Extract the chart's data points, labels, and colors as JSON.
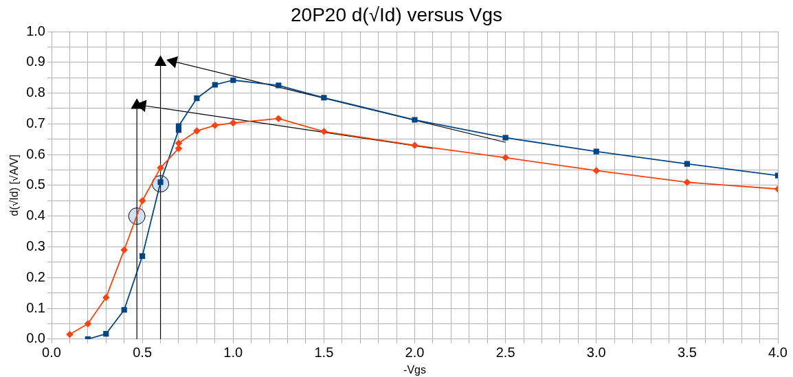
{
  "chart_data": {
    "type": "line",
    "title": "20P20 d(√Id) versus Vgs",
    "xlabel": "-Vgs",
    "ylabel": "d(√Id) [√A/V]",
    "grid": true,
    "legend": false,
    "xlim": [
      0,
      4
    ],
    "ylim": [
      0,
      1
    ],
    "xticks": [
      {
        "value": 0,
        "label": "0.0"
      },
      {
        "value": 0.1,
        "label": null
      },
      {
        "value": 0.2,
        "label": null
      },
      {
        "value": 0.3,
        "label": null
      },
      {
        "value": 0.4,
        "label": null
      },
      {
        "value": 0.5,
        "label": "0.5"
      },
      {
        "value": 0.6,
        "label": null
      },
      {
        "value": 0.7,
        "label": null
      },
      {
        "value": 0.8,
        "label": null
      },
      {
        "value": 0.9,
        "label": null
      },
      {
        "value": 1,
        "label": "1.0"
      },
      {
        "value": 1.1,
        "label": null
      },
      {
        "value": 1.2,
        "label": null
      },
      {
        "value": 1.3,
        "label": null
      },
      {
        "value": 1.4,
        "label": null
      },
      {
        "value": 1.5,
        "label": "1.5"
      },
      {
        "value": 1.6,
        "label": null
      },
      {
        "value": 1.7,
        "label": null
      },
      {
        "value": 1.8,
        "label": null
      },
      {
        "value": 1.9,
        "label": null
      },
      {
        "value": 2,
        "label": "2.0"
      },
      {
        "value": 2.1,
        "label": null
      },
      {
        "value": 2.2,
        "label": null
      },
      {
        "value": 2.3,
        "label": null
      },
      {
        "value": 2.4,
        "label": null
      },
      {
        "value": 2.5,
        "label": "2.5"
      },
      {
        "value": 2.6,
        "label": null
      },
      {
        "value": 2.7,
        "label": null
      },
      {
        "value": 2.8,
        "label": null
      },
      {
        "value": 2.9,
        "label": null
      },
      {
        "value": 3,
        "label": "3.0"
      },
      {
        "value": 3.1,
        "label": null
      },
      {
        "value": 3.2,
        "label": null
      },
      {
        "value": 3.3,
        "label": null
      },
      {
        "value": 3.4,
        "label": null
      },
      {
        "value": 3.5,
        "label": "3.5"
      },
      {
        "value": 3.6,
        "label": null
      },
      {
        "value": 3.7,
        "label": null
      },
      {
        "value": 3.8,
        "label": null
      },
      {
        "value": 3.9,
        "label": null
      },
      {
        "value": 4,
        "label": "4.0"
      }
    ],
    "yticks": [
      {
        "value": 0,
        "label": "0.0"
      },
      {
        "value": 0.05,
        "label": null
      },
      {
        "value": 0.1,
        "label": "0.1"
      },
      {
        "value": 0.15,
        "label": null
      },
      {
        "value": 0.2,
        "label": "0.2"
      },
      {
        "value": 0.25,
        "label": null
      },
      {
        "value": 0.3,
        "label": "0.3"
      },
      {
        "value": 0.35,
        "label": null
      },
      {
        "value": 0.4,
        "label": "0.4"
      },
      {
        "value": 0.45,
        "label": null
      },
      {
        "value": 0.5,
        "label": "0.5"
      },
      {
        "value": 0.55,
        "label": null
      },
      {
        "value": 0.6,
        "label": "0.6"
      },
      {
        "value": 0.65,
        "label": null
      },
      {
        "value": 0.7,
        "label": "0.7"
      },
      {
        "value": 0.75,
        "label": null
      },
      {
        "value": 0.8,
        "label": "0.8"
      },
      {
        "value": 0.85,
        "label": null
      },
      {
        "value": 0.9,
        "label": "0.9"
      },
      {
        "value": 0.95,
        "label": null
      },
      {
        "value": 1,
        "label": "1.0"
      }
    ],
    "series": [
      {
        "type": "line",
        "color": "#ff420e",
        "marker": "diamond",
        "x": [
          0.1,
          0.2,
          0.3,
          0.4,
          0.5,
          0.6,
          0.7,
          0.7,
          0.8,
          0.9,
          1.0,
          1.25,
          1.5,
          2.0,
          2.5,
          3.0,
          3.5,
          4.0
        ],
        "values": [
          0.015,
          0.05,
          0.135,
          0.29,
          0.45,
          0.557,
          0.62,
          0.637,
          0.677,
          0.695,
          0.703,
          0.717,
          0.675,
          0.63,
          0.59,
          0.548,
          0.51,
          0.488
        ]
      },
      {
        "type": "line",
        "color": "#004586",
        "marker": "square",
        "x": [
          0.2,
          0.3,
          0.4,
          0.5,
          0.6,
          0.7,
          0.7,
          0.8,
          0.9,
          1.0,
          1.25,
          1.5,
          2.0,
          2.5,
          3.0,
          3.5,
          4.0
        ],
        "values": [
          0.0,
          0.017,
          0.095,
          0.27,
          0.51,
          0.68,
          0.693,
          0.783,
          0.827,
          0.842,
          0.825,
          0.785,
          0.713,
          0.655,
          0.61,
          0.57,
          0.532
        ]
      },
      {
        "type": "line",
        "color": "#000000",
        "marker": "triangle",
        "x": [
          0.67,
          2.5
        ],
        "values": [
          0.903,
          0.64
        ]
      },
      {
        "type": "line",
        "color": "#000000",
        "marker": "triangle",
        "x": [
          0.5,
          2.1
        ],
        "values": [
          0.76,
          0.62
        ]
      },
      {
        "type": "line",
        "color": "#000000",
        "marker": "triangle",
        "x": [
          0.6,
          0.6
        ],
        "values": [
          0.9,
          0
        ]
      },
      {
        "type": "line",
        "color": "#000000",
        "marker": "triangle",
        "x": [
          0.47,
          0.47
        ],
        "values": [
          0.76,
          0
        ]
      },
      {
        "type": "scatter",
        "color": "#cfe2f3",
        "marker": "circle",
        "x": [
          0.47,
          0.6
        ],
        "values": [
          0.4,
          0.505
        ]
      }
    ]
  }
}
